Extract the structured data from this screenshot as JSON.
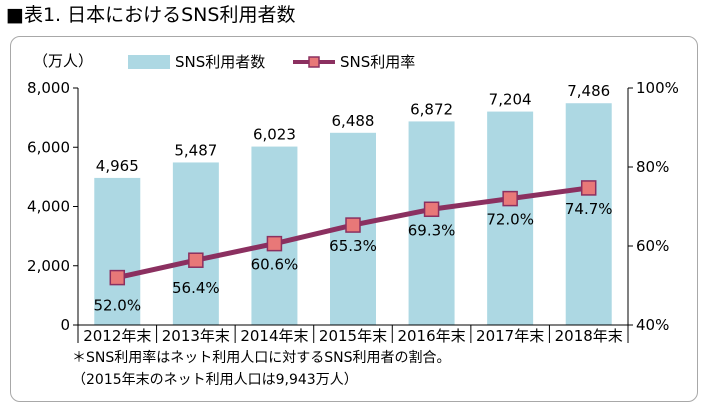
{
  "heading": "■表1. 日本におけるSNS利用者数",
  "notes": {
    "line1": "＊SNS利用率はネット利用人口に対するSNS利用者の割合。",
    "line2": "（2015年末のネット利用人口は9,943万人）"
  },
  "colors": {
    "bar": "#add8e3",
    "line": "#8b3060",
    "marker": "#e87878",
    "axis": "#000000"
  },
  "chart_data": {
    "type": "bar",
    "title": "",
    "categories": [
      "2012年末",
      "2013年末",
      "2014年末",
      "2015年末",
      "2016年末",
      "2017年末",
      "2018年末"
    ],
    "y_left": {
      "unit_label": "（万人）",
      "range": [
        0,
        8000
      ],
      "ticks": [
        "0",
        "2,000",
        "4,000",
        "6,000",
        "8,000"
      ]
    },
    "y_right": {
      "range": [
        40,
        100
      ],
      "ticks": [
        "40%",
        "60%",
        "80%",
        "100%"
      ]
    },
    "legend_position": "top",
    "grid": false,
    "series": [
      {
        "name": "SNS利用者数",
        "type": "bar",
        "axis": "left",
        "values": [
          4965,
          5487,
          6023,
          6488,
          6872,
          7204,
          7486
        ],
        "labels": [
          "4,965",
          "5,487",
          "6,023",
          "6,488",
          "6,872",
          "7,204",
          "7,486"
        ]
      },
      {
        "name": "SNS利用率",
        "type": "line",
        "axis": "right",
        "values": [
          52.0,
          56.4,
          60.6,
          65.3,
          69.3,
          72.0,
          74.7
        ],
        "labels": [
          "52.0%",
          "56.4%",
          "60.6%",
          "65.3%",
          "69.3%",
          "72.0%",
          "74.7%"
        ]
      }
    ]
  }
}
